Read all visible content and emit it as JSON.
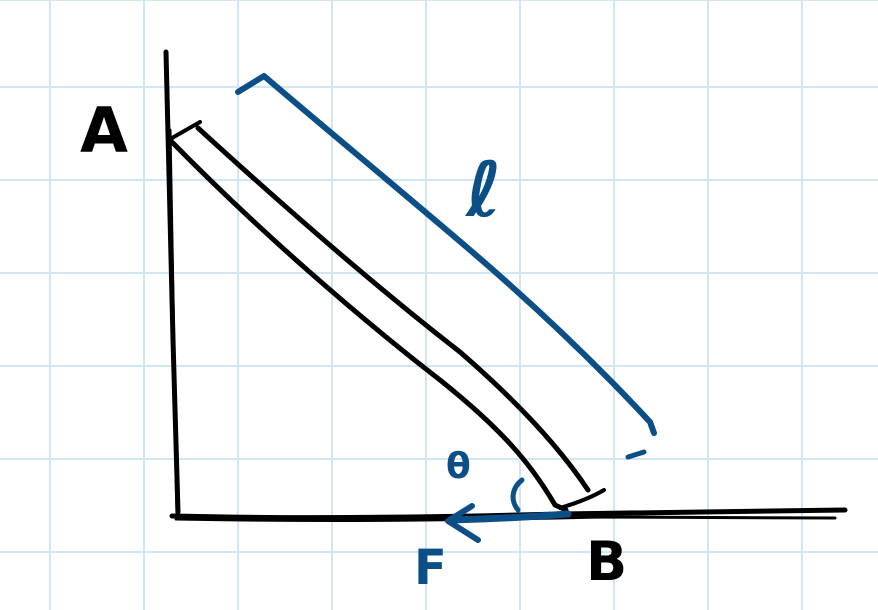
{
  "labels": {
    "point_a": "A",
    "point_b": "B",
    "length": "ℓ",
    "angle": "θ",
    "force": "F"
  },
  "colors": {
    "grid": "#cfe6f3",
    "ink": "#000000",
    "annotation": "#0b4f86",
    "paper": "#ffffff"
  }
}
